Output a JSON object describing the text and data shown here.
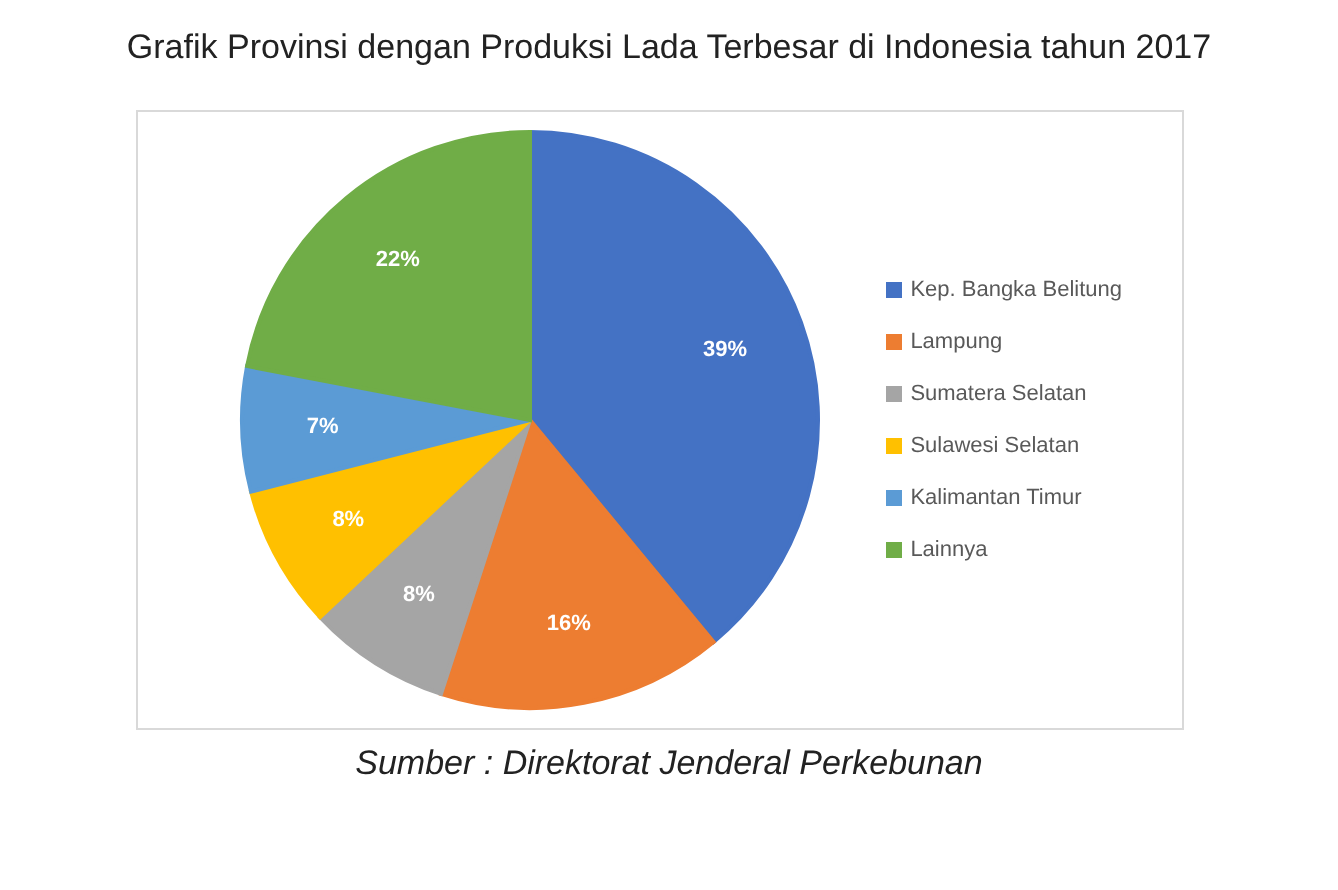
{
  "chart_data": {
    "type": "pie",
    "title": "Grafik Provinsi dengan Produksi Lada Terbesar di Indonesia tahun 2017",
    "categories": [
      "Kep. Bangka Belitung",
      "Lampung",
      "Sumatera Selatan",
      "Sulawesi Selatan",
      "Kalimantan Timur",
      "Lainnya"
    ],
    "values": [
      39,
      16,
      8,
      8,
      7,
      22
    ],
    "value_labels": [
      "39%",
      "16%",
      "8%",
      "8%",
      "7%",
      "22%"
    ],
    "colors": [
      "#4472c4",
      "#ed7d31",
      "#a5a5a5",
      "#ffc000",
      "#5b9bd5",
      "#70ad47"
    ],
    "legend": "right",
    "annotations": [
      "Sumber : Direktorat Jenderal Perkebunan"
    ]
  }
}
